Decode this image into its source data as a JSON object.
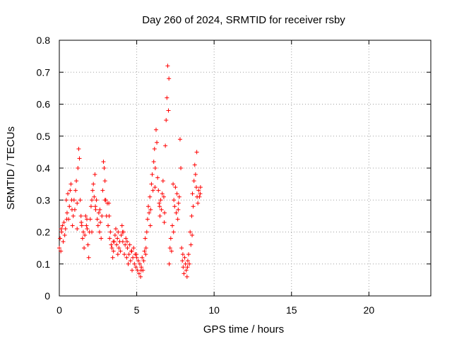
{
  "chart_data": {
    "type": "scatter",
    "title": "Day 260 of 2024, SRMTID for receiver rsby",
    "xlabel": "GPS time / hours",
    "ylabel": "SRMTID / TECUs",
    "xlim": [
      0,
      24
    ],
    "ylim": [
      0,
      0.8
    ],
    "xticks": [
      0,
      5,
      10,
      15,
      20
    ],
    "xtick_labels": [
      "0",
      "5",
      "10",
      "15",
      "20"
    ],
    "yticks": [
      0,
      0.1,
      0.2,
      0.3,
      0.4,
      0.5,
      0.6,
      0.7,
      0.8
    ],
    "ytick_labels": [
      "0",
      "0.1",
      "0.2",
      "0.3",
      "0.4",
      "0.5",
      "0.6",
      "0.7",
      "0.8"
    ],
    "grid": true,
    "marker": "+",
    "series": [
      {
        "name": "SRMTID",
        "color": "#ff0000",
        "points": [
          [
            0.0,
            0.15
          ],
          [
            0.05,
            0.18
          ],
          [
            0.1,
            0.14
          ],
          [
            0.15,
            0.2
          ],
          [
            0.2,
            0.22
          ],
          [
            0.25,
            0.17
          ],
          [
            0.3,
            0.23
          ],
          [
            0.35,
            0.19
          ],
          [
            0.4,
            0.21
          ],
          [
            0.45,
            0.3
          ],
          [
            0.5,
            0.26
          ],
          [
            0.55,
            0.32
          ],
          [
            0.6,
            0.24
          ],
          [
            0.65,
            0.28
          ],
          [
            0.7,
            0.33
          ],
          [
            0.75,
            0.35
          ],
          [
            0.8,
            0.3
          ],
          [
            0.85,
            0.22
          ],
          [
            0.9,
            0.25
          ],
          [
            0.95,
            0.3
          ],
          [
            1.0,
            0.27
          ],
          [
            1.05,
            0.33
          ],
          [
            1.1,
            0.36
          ],
          [
            1.15,
            0.29
          ],
          [
            1.2,
            0.4
          ],
          [
            1.25,
            0.46
          ],
          [
            1.3,
            0.43
          ],
          [
            1.35,
            0.3
          ],
          [
            1.4,
            0.25
          ],
          [
            1.45,
            0.22
          ],
          [
            1.5,
            0.18
          ],
          [
            1.55,
            0.2
          ],
          [
            1.6,
            0.15
          ],
          [
            1.65,
            0.19
          ],
          [
            1.7,
            0.25
          ],
          [
            1.75,
            0.22
          ],
          [
            1.8,
            0.21
          ],
          [
            1.85,
            0.16
          ],
          [
            1.9,
            0.12
          ],
          [
            1.95,
            0.2
          ],
          [
            2.0,
            0.24
          ],
          [
            2.05,
            0.28
          ],
          [
            2.1,
            0.3
          ],
          [
            2.15,
            0.33
          ],
          [
            2.2,
            0.35
          ],
          [
            2.25,
            0.31
          ],
          [
            2.3,
            0.38
          ],
          [
            2.35,
            0.27
          ],
          [
            2.4,
            0.3
          ],
          [
            2.45,
            0.24
          ],
          [
            2.5,
            0.22
          ],
          [
            2.55,
            0.26
          ],
          [
            2.6,
            0.2
          ],
          [
            2.65,
            0.23
          ],
          [
            2.7,
            0.18
          ],
          [
            2.75,
            0.25
          ],
          [
            2.8,
            0.33
          ],
          [
            2.85,
            0.42
          ],
          [
            2.9,
            0.4
          ],
          [
            2.95,
            0.36
          ],
          [
            3.0,
            0.3
          ],
          [
            3.05,
            0.25
          ],
          [
            3.1,
            0.29
          ],
          [
            3.15,
            0.22
          ],
          [
            3.2,
            0.29
          ],
          [
            3.25,
            0.18
          ],
          [
            3.3,
            0.2
          ],
          [
            3.35,
            0.16
          ],
          [
            3.4,
            0.15
          ],
          [
            3.45,
            0.12
          ],
          [
            3.5,
            0.14
          ],
          [
            3.55,
            0.17
          ],
          [
            3.6,
            0.19
          ],
          [
            3.65,
            0.21
          ],
          [
            3.7,
            0.16
          ],
          [
            3.75,
            0.18
          ],
          [
            3.8,
            0.2
          ],
          [
            3.85,
            0.15
          ],
          [
            3.9,
            0.17
          ],
          [
            3.95,
            0.14
          ],
          [
            4.0,
            0.19
          ],
          [
            4.05,
            0.22
          ],
          [
            4.1,
            0.17
          ],
          [
            4.15,
            0.2
          ],
          [
            4.2,
            0.13
          ],
          [
            4.25,
            0.16
          ],
          [
            4.3,
            0.18
          ],
          [
            4.35,
            0.12
          ],
          [
            4.4,
            0.15
          ],
          [
            4.45,
            0.1
          ],
          [
            4.5,
            0.13
          ],
          [
            4.55,
            0.16
          ],
          [
            4.6,
            0.11
          ],
          [
            4.65,
            0.14
          ],
          [
            4.7,
            0.08
          ],
          [
            4.75,
            0.12
          ],
          [
            4.8,
            0.15
          ],
          [
            4.85,
            0.1
          ],
          [
            4.9,
            0.13
          ],
          [
            4.95,
            0.09
          ],
          [
            5.0,
            0.12
          ],
          [
            5.05,
            0.08
          ],
          [
            5.1,
            0.11
          ],
          [
            5.15,
            0.07
          ],
          [
            5.2,
            0.1
          ],
          [
            5.25,
            0.06
          ],
          [
            5.3,
            0.09
          ],
          [
            5.35,
            0.12
          ],
          [
            5.4,
            0.08
          ],
          [
            5.45,
            0.11
          ],
          [
            5.5,
            0.14
          ],
          [
            5.55,
            0.18
          ],
          [
            5.6,
            0.15
          ],
          [
            5.65,
            0.2
          ],
          [
            5.7,
            0.24
          ],
          [
            5.75,
            0.28
          ],
          [
            5.8,
            0.26
          ],
          [
            5.85,
            0.31
          ],
          [
            5.9,
            0.27
          ],
          [
            5.95,
            0.35
          ],
          [
            6.0,
            0.38
          ],
          [
            6.05,
            0.33
          ],
          [
            6.1,
            0.42
          ],
          [
            6.15,
            0.46
          ],
          [
            6.2,
            0.4
          ],
          [
            6.25,
            0.52
          ],
          [
            6.3,
            0.48
          ],
          [
            6.35,
            0.37
          ],
          [
            6.4,
            0.33
          ],
          [
            6.45,
            0.29
          ],
          [
            6.5,
            0.25
          ],
          [
            6.55,
            0.3
          ],
          [
            6.6,
            0.27
          ],
          [
            6.65,
            0.32
          ],
          [
            6.7,
            0.36
          ],
          [
            6.75,
            0.31
          ],
          [
            6.8,
            0.26
          ],
          [
            6.85,
            0.47
          ],
          [
            6.9,
            0.55
          ],
          [
            6.95,
            0.62
          ],
          [
            7.0,
            0.72
          ],
          [
            7.05,
            0.58
          ],
          [
            7.1,
            0.1
          ],
          [
            7.15,
            0.15
          ],
          [
            7.2,
            0.18
          ],
          [
            7.25,
            0.14
          ],
          [
            7.3,
            0.22
          ],
          [
            7.35,
            0.35
          ],
          [
            7.4,
            0.3
          ],
          [
            7.45,
            0.28
          ],
          [
            7.5,
            0.34
          ],
          [
            7.55,
            0.26
          ],
          [
            7.6,
            0.32
          ],
          [
            7.65,
            0.24
          ],
          [
            7.7,
            0.29
          ],
          [
            7.75,
            0.31
          ],
          [
            7.8,
            0.49
          ],
          [
            7.85,
            0.4
          ],
          [
            7.9,
            0.15
          ],
          [
            7.95,
            0.11
          ],
          [
            8.0,
            0.09
          ],
          [
            8.05,
            0.07
          ],
          [
            8.1,
            0.12
          ],
          [
            8.15,
            0.1
          ],
          [
            8.2,
            0.08
          ],
          [
            8.25,
            0.06
          ],
          [
            8.3,
            0.11
          ],
          [
            8.35,
            0.13
          ],
          [
            8.4,
            0.1
          ],
          [
            8.45,
            0.2
          ],
          [
            8.5,
            0.16
          ],
          [
            8.55,
            0.25
          ],
          [
            8.6,
            0.32
          ],
          [
            8.65,
            0.28
          ],
          [
            8.7,
            0.36
          ],
          [
            8.75,
            0.41
          ],
          [
            8.8,
            0.38
          ],
          [
            8.85,
            0.34
          ],
          [
            8.9,
            0.31
          ],
          [
            8.95,
            0.29
          ],
          [
            9.0,
            0.33
          ],
          [
            9.05,
            0.31
          ],
          [
            9.1,
            0.32
          ],
          [
            0.12,
            0.21
          ],
          [
            0.48,
            0.24
          ],
          [
            0.82,
            0.27
          ],
          [
            1.15,
            0.21
          ],
          [
            1.42,
            0.23
          ],
          [
            1.78,
            0.24
          ],
          [
            2.1,
            0.2
          ],
          [
            2.33,
            0.28
          ],
          [
            2.62,
            0.27
          ],
          [
            2.95,
            0.3
          ],
          [
            3.22,
            0.25
          ],
          [
            3.48,
            0.17
          ],
          [
            3.78,
            0.13
          ],
          [
            4.08,
            0.2
          ],
          [
            4.38,
            0.17
          ],
          [
            4.68,
            0.14
          ],
          [
            4.98,
            0.13
          ],
          [
            5.28,
            0.08
          ],
          [
            5.58,
            0.13
          ],
          [
            5.88,
            0.22
          ],
          [
            6.18,
            0.34
          ],
          [
            6.48,
            0.28
          ],
          [
            6.78,
            0.23
          ],
          [
            7.08,
            0.68
          ],
          [
            7.38,
            0.2
          ],
          [
            7.68,
            0.27
          ],
          [
            7.98,
            0.13
          ],
          [
            8.28,
            0.09
          ],
          [
            8.58,
            0.19
          ],
          [
            8.88,
            0.45
          ],
          [
            9.12,
            0.34
          ]
        ]
      }
    ]
  }
}
